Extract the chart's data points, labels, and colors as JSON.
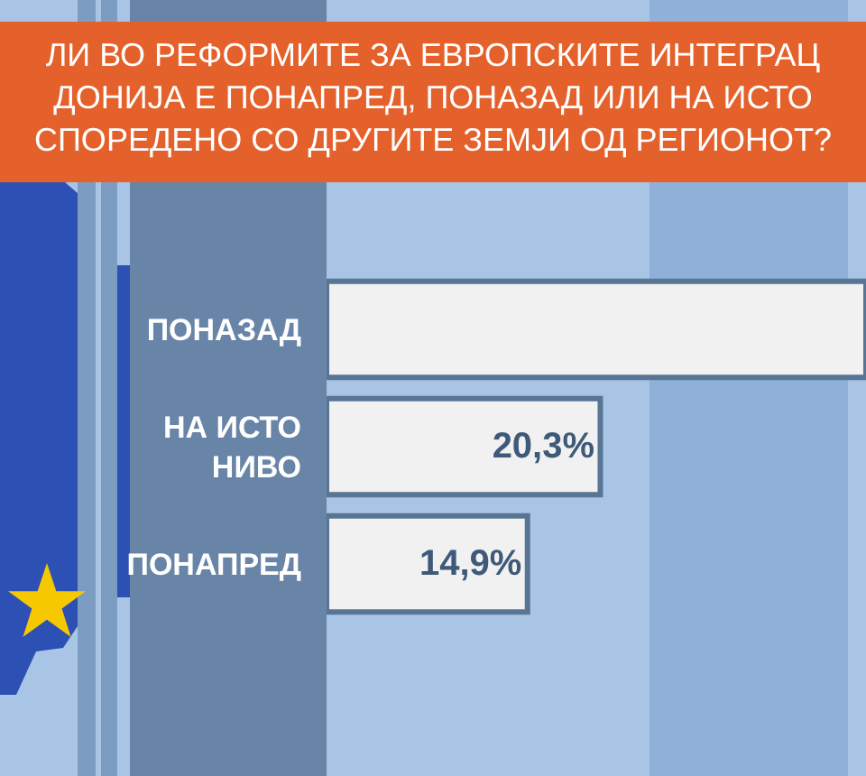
{
  "chart_data": {
    "type": "bar",
    "orientation": "horizontal",
    "title": "ЛИ ВО РЕФОРМИТЕ ЗА ЕВРОПСКИТЕ ИНТЕГРАЦ ДОНИЈА Е ПОНАПРЕД, ПОНАЗАД ИЛИ НА ИСТО СПОРЕДЕНО СО ДРУГИТЕ ЗЕМЈИ ОД РЕГИОНОТ?",
    "categories": [
      "ПОНАЗАД",
      "НА ИСТО НИВО",
      "ПОНАПРЕД"
    ],
    "values": [
      40,
      20.3,
      14.9
    ],
    "value_labels": [
      null,
      "20,3%",
      "14,9%"
    ],
    "color": "#f1f1f1",
    "xlim": [
      0,
      40
    ],
    "tick_labels": "y"
  }
}
